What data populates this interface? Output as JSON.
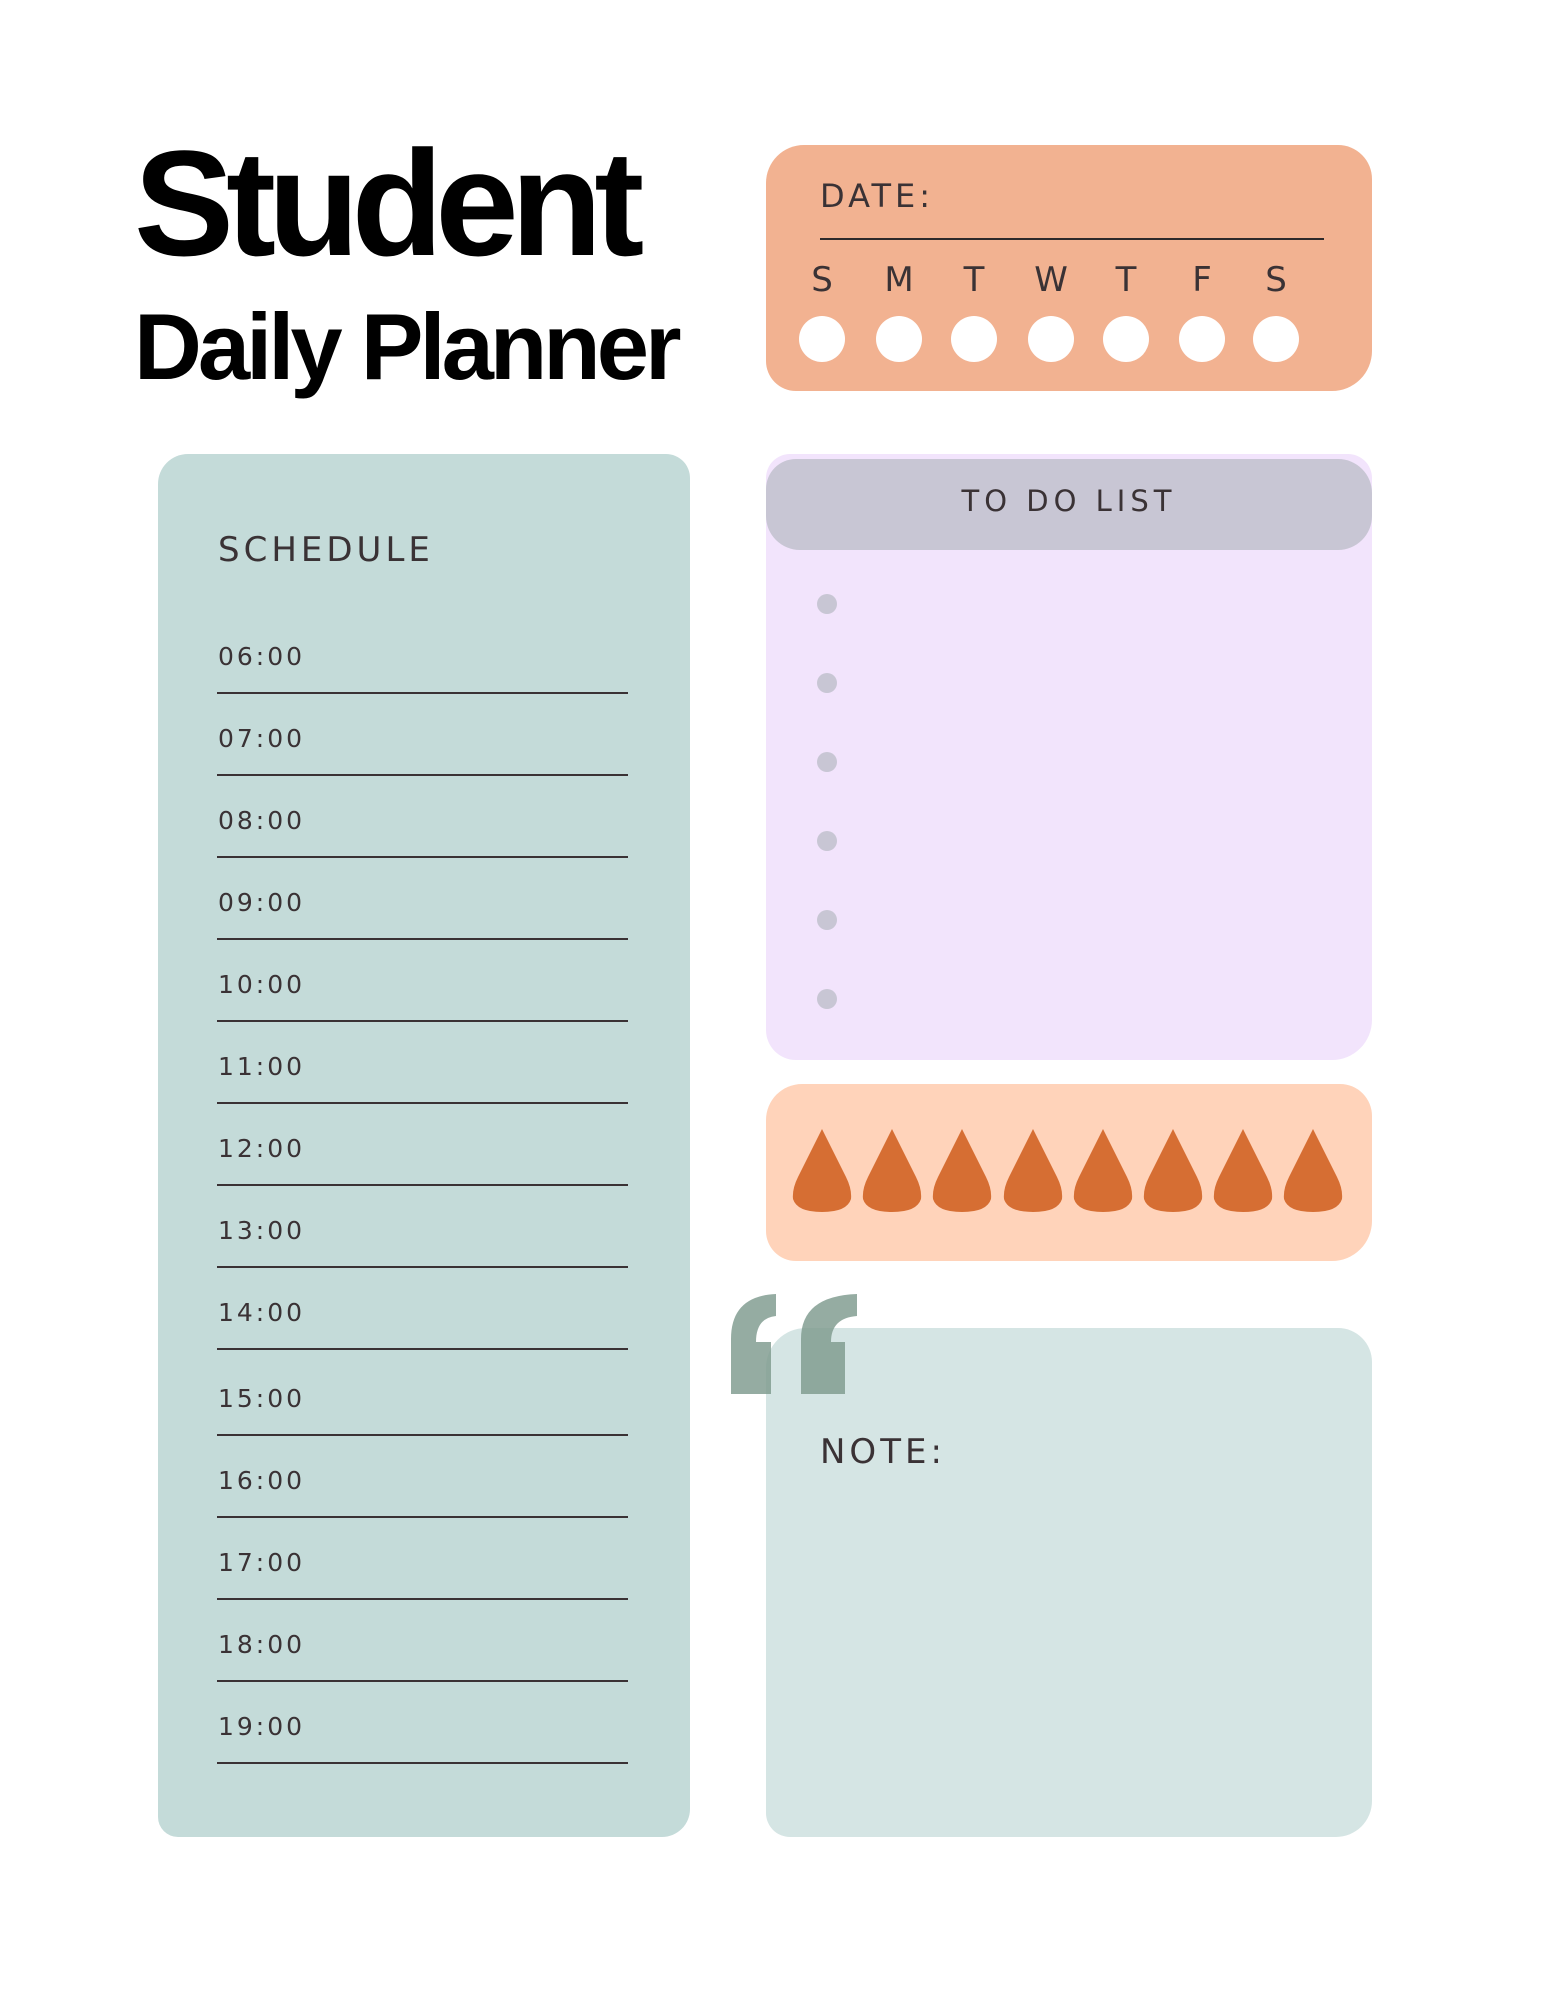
{
  "title": {
    "line1": "Student",
    "line2": "Daily Planner"
  },
  "date_section": {
    "label": "DATE:",
    "days": [
      "S",
      "M",
      "T",
      "W",
      "T",
      "F",
      "S"
    ]
  },
  "schedule": {
    "title": "SCHEDULE",
    "times": [
      "06:00",
      "07:00",
      "08:00",
      "09:00",
      "10:00",
      "11:00",
      "12:00",
      "13:00",
      "14:00",
      "15:00",
      "16:00",
      "17:00",
      "18:00",
      "19:00"
    ]
  },
  "todo": {
    "title": "TO DO LIST",
    "bullet_count": 6
  },
  "water": {
    "icon": "water-drop-icon",
    "drop_count": 8
  },
  "note": {
    "label": "NOTE:",
    "icon": "quote-icon"
  },
  "colors": {
    "date": "#F2B291",
    "schedule": "#C4DBD9",
    "todo": "#F2E4FC",
    "todo_header": "#C8C6D4",
    "water": "#FFD3BA",
    "drop": "#D66E33",
    "note": "#D5E5E4",
    "quote": "#7E9A8D",
    "text": "#3a3235"
  }
}
